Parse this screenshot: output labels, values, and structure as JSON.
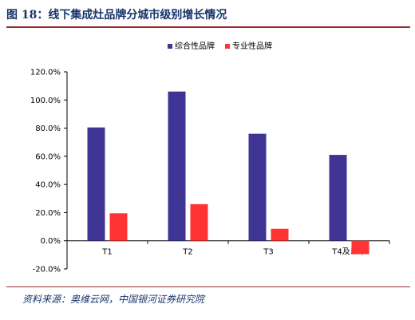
{
  "figure": {
    "title": "图 18：线下集成灶品牌分城市级别增长情况",
    "source": "资料来源：奥维云网，中国银河证券研究院"
  },
  "chart_data": {
    "type": "bar",
    "categories": [
      "T1",
      "T2",
      "T3",
      "T4及以下"
    ],
    "series": [
      {
        "name": "综合性品牌",
        "values": [
          80.5,
          106.0,
          76.0,
          61.0
        ],
        "color": "#3f3494"
      },
      {
        "name": "专业性品牌",
        "values": [
          19.5,
          26.0,
          8.5,
          -9.5
        ],
        "color": "#ff3333"
      }
    ],
    "ylim": [
      -20,
      120
    ],
    "yticks": [
      "-20.0%",
      "0.0%",
      "20.0%",
      "40.0%",
      "60.0%",
      "80.0%",
      "100.0%",
      "120.0%"
    ],
    "ytick_values": [
      -20,
      0,
      20,
      40,
      60,
      80,
      100,
      120
    ],
    "legend_position": "top",
    "grid": false,
    "xlabel": "",
    "ylabel": ""
  }
}
